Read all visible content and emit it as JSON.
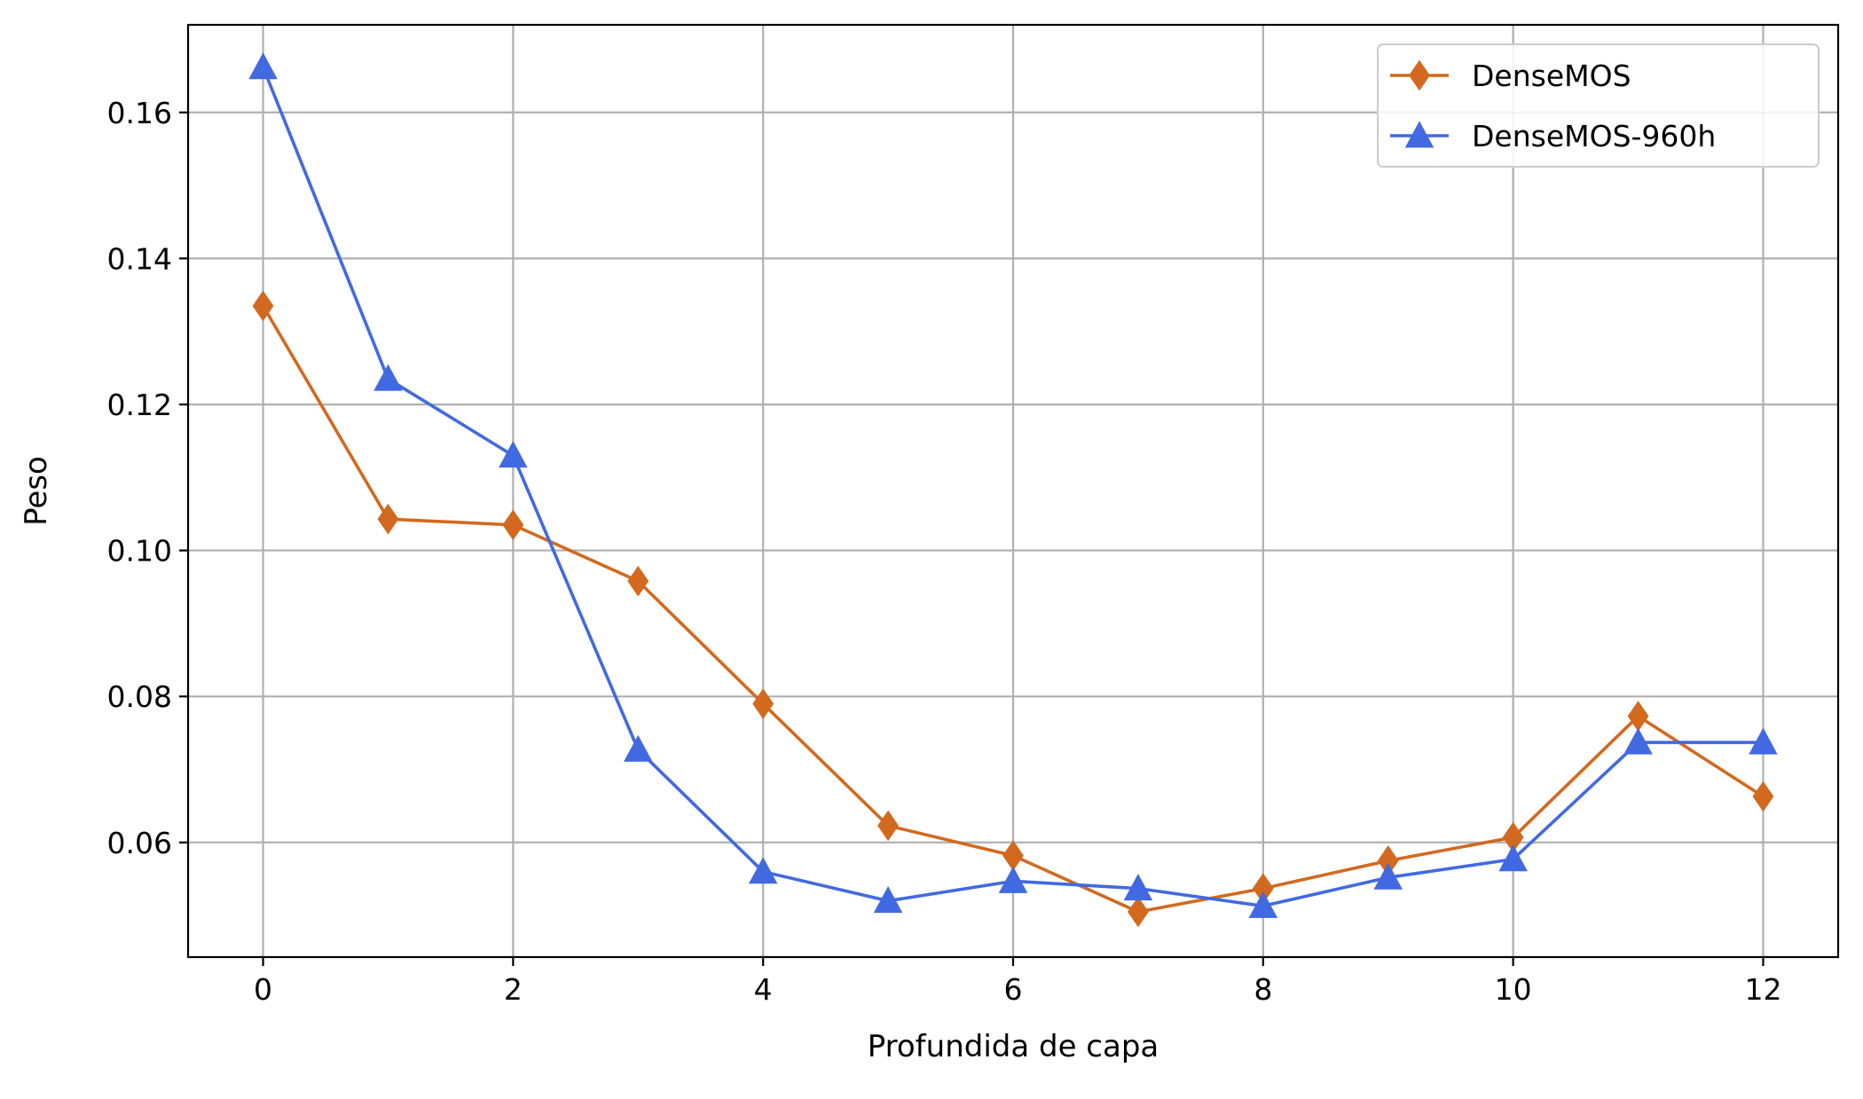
{
  "chart_data": {
    "type": "line",
    "title": "",
    "xlabel": "Profundida de capa",
    "ylabel": "Peso",
    "xlim": [
      -0.6,
      12.6
    ],
    "ylim": [
      0.0443,
      0.172
    ],
    "xticks": [
      0,
      2,
      4,
      6,
      8,
      10,
      12
    ],
    "yticks": [
      0.06,
      0.08,
      0.1,
      0.12,
      0.14,
      0.16
    ],
    "xtick_labels": [
      "0",
      "2",
      "4",
      "6",
      "8",
      "10",
      "12"
    ],
    "ytick_labels": [
      "0.06",
      "0.08",
      "0.10",
      "0.12",
      "0.14",
      "0.16"
    ],
    "grid": true,
    "legend_position": "top-right",
    "x": [
      0,
      1,
      2,
      3,
      4,
      5,
      6,
      7,
      8,
      9,
      10,
      11,
      12
    ],
    "series": [
      {
        "name": "DenseMOS",
        "color": "#d2691e",
        "marker": "thin-diamond",
        "values": [
          0.1335,
          0.1043,
          0.1035,
          0.0958,
          0.079,
          0.0623,
          0.0582,
          0.0505,
          0.0537,
          0.0575,
          0.0607,
          0.0773,
          0.0663
        ]
      },
      {
        "name": "DenseMOS-960h",
        "color": "#4169e1",
        "marker": "triangle-up",
        "values": [
          0.1662,
          0.1235,
          0.113,
          0.0727,
          0.056,
          0.052,
          0.0547,
          0.0537,
          0.0513,
          0.0552,
          0.0577,
          0.0737,
          0.0737
        ]
      }
    ]
  }
}
